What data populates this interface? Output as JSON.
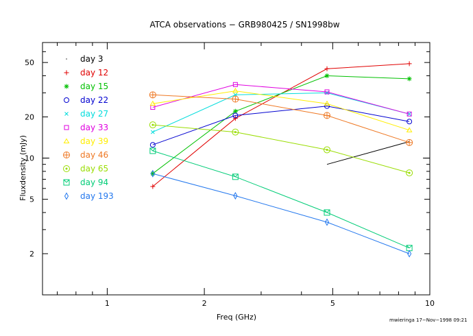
{
  "chart_data": {
    "type": "line",
    "title": "ATCA observations − GRB980425 / SN1998bw",
    "xlabel": "Freq (GHz)",
    "ylabel": "Fluxdensity (mJy)",
    "xscale": "log",
    "yscale": "log",
    "xlim": [
      0.63,
      10
    ],
    "ylim": [
      1,
      70
    ],
    "x_ticks": [
      1,
      2,
      5,
      10
    ],
    "x_tick_labels": [
      "1",
      "2",
      "5",
      "10"
    ],
    "y_ticks": [
      2,
      5,
      10,
      20,
      50
    ],
    "y_tick_labels": [
      "2",
      "5",
      "10",
      "20",
      "50"
    ],
    "legend_position": "top-left",
    "footer": "mwieringa 17−Nov−1998 09:21",
    "series": [
      {
        "name": "day 3",
        "color": "#000000",
        "marker": "dot",
        "x": [
          4.8,
          8.64
        ],
        "y": [
          9.0,
          13.2
        ]
      },
      {
        "name": "day 12",
        "color": "#e00000",
        "marker": "plus",
        "x": [
          1.384,
          2.496,
          4.8,
          8.64
        ],
        "y": [
          6.2,
          19.5,
          45,
          49
        ]
      },
      {
        "name": "day 15",
        "color": "#00c000",
        "marker": "star",
        "x": [
          1.384,
          2.496,
          4.8,
          8.64
        ],
        "y": [
          7.7,
          22,
          40,
          38
        ]
      },
      {
        "name": "day 22",
        "color": "#0000d0",
        "marker": "circle",
        "x": [
          1.384,
          2.496,
          4.8,
          8.64
        ],
        "y": [
          12.5,
          20.5,
          24,
          18.5
        ]
      },
      {
        "name": "day 27",
        "color": "#00dcdc",
        "marker": "cross",
        "x": [
          1.384,
          2.496,
          4.8,
          8.64
        ],
        "y": [
          15.5,
          29,
          30,
          21
        ]
      },
      {
        "name": "day 33",
        "color": "#e000e0",
        "marker": "square",
        "x": [
          1.384,
          2.496,
          4.8,
          8.64
        ],
        "y": [
          23.5,
          34.5,
          30.5,
          21
        ]
      },
      {
        "name": "day 39",
        "color": "#ffee00",
        "marker": "triangle",
        "x": [
          1.384,
          2.496,
          4.8,
          8.64
        ],
        "y": [
          25,
          31,
          25,
          16
        ]
      },
      {
        "name": "day 46",
        "color": "#ee7722",
        "marker": "circle-plus",
        "x": [
          1.384,
          2.496,
          4.8,
          8.64
        ],
        "y": [
          29,
          27,
          20.5,
          13
        ]
      },
      {
        "name": "day 65",
        "color": "#99dd00",
        "marker": "circle-dot",
        "x": [
          1.384,
          2.496,
          4.8,
          8.64
        ],
        "y": [
          17.5,
          15.5,
          11.5,
          7.8
        ]
      },
      {
        "name": "day 94",
        "color": "#00cc77",
        "marker": "square-x",
        "x": [
          1.384,
          2.496,
          4.8,
          8.64
        ],
        "y": [
          11.3,
          7.3,
          4.0,
          2.2
        ]
      },
      {
        "name": "day 193",
        "color": "#2277ee",
        "marker": "diamond",
        "x": [
          1.384,
          2.496,
          4.8,
          8.64
        ],
        "y": [
          7.7,
          5.3,
          3.4,
          2.0
        ]
      }
    ]
  }
}
